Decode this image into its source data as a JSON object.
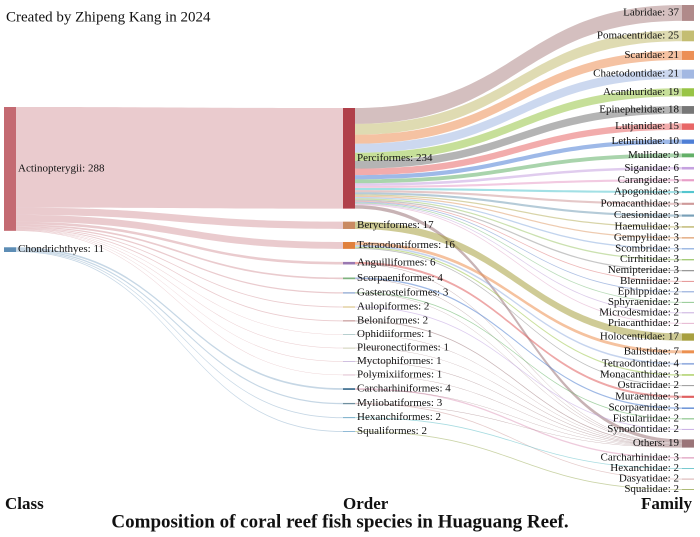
{
  "chart_data": {
    "type": "sankey",
    "title": "Composition of coral reef fish species in Huaguang Reef.",
    "annotation": "Created by Zhipeng Kang in 2024",
    "columns": [
      "Class",
      "Order",
      "Family"
    ],
    "nodes": [
      {
        "label": "Actinopterygii: 288",
        "value": 288,
        "color": "#c46a72"
      },
      {
        "label": "Chondrichthyes: 11",
        "value": 11,
        "color": "#5d8db5"
      },
      {
        "label": "Perciformes: 234",
        "value": 234,
        "color": "#b0404a"
      },
      {
        "label": "Beryciformes: 17",
        "value": 17,
        "color": "#c98a62"
      },
      {
        "label": "Tetraodontiformes: 16",
        "value": 16,
        "color": "#e0803c"
      },
      {
        "label": "Anguilliformes: 6",
        "value": 6,
        "color": "#9a78b0"
      },
      {
        "label": "Scorpaeniformes: 4",
        "value": 4,
        "color": "#7fb27f"
      },
      {
        "label": "Gasterosteiformes: 3",
        "value": 3,
        "color": "#8fa7d0"
      },
      {
        "label": "Aulopiformes: 2",
        "value": 2,
        "color": "#d0b060"
      },
      {
        "label": "Beloniformes: 2",
        "value": 2,
        "color": "#b07070"
      },
      {
        "label": "Ophidiiformes: 1",
        "value": 1,
        "color": "#70a0a0"
      },
      {
        "label": "Pleuronectiformes: 1",
        "value": 1,
        "color": "#a0a070"
      },
      {
        "label": "Myctophiformes: 1",
        "value": 1,
        "color": "#a080c0"
      },
      {
        "label": "Polymixiiformes: 1",
        "value": 1,
        "color": "#c080a0"
      },
      {
        "label": "Carcharhiniformes: 4",
        "value": 4,
        "color": "#3f6f8f"
      },
      {
        "label": "Myliobatiformes: 3",
        "value": 3,
        "color": "#6f8f9f"
      },
      {
        "label": "Hexanchiformes: 2",
        "value": 2,
        "color": "#5f9fbf"
      },
      {
        "label": "Squaliformes: 2",
        "value": 2,
        "color": "#7fafcf"
      },
      {
        "label": "Labridae: 37",
        "value": 37,
        "color": "#b08a8a"
      },
      {
        "label": "Pomacentridae: 25",
        "value": 25,
        "color": "#c4bd72"
      },
      {
        "label": "Scaridae: 21",
        "value": 21,
        "color": "#ec8f55"
      },
      {
        "label": "Chaetodontidae: 21",
        "value": 21,
        "color": "#a3b8e2"
      },
      {
        "label": "Acanthuridae: 19",
        "value": 19,
        "color": "#98c446"
      },
      {
        "label": "Epinephelidae: 18",
        "value": 18,
        "color": "#777777"
      },
      {
        "label": "Lutjanidae: 15",
        "value": 15,
        "color": "#e86767"
      },
      {
        "label": "Lethrinidae: 10",
        "value": 10,
        "color": "#4e7fd6"
      },
      {
        "label": "Mullidae: 9",
        "value": 9,
        "color": "#63b068"
      },
      {
        "label": "Siganidae: 6",
        "value": 6,
        "color": "#c6a2e0"
      },
      {
        "label": "Carangidae: 5",
        "value": 5,
        "color": "#e89fc8"
      },
      {
        "label": "Apogonidae: 5",
        "value": 5,
        "color": "#55c6cf"
      },
      {
        "label": "Pomacanthidae: 5",
        "value": 5,
        "color": "#cf9a9a"
      },
      {
        "label": "Caesionidae: 5",
        "value": 5,
        "color": "#78a0b8"
      },
      {
        "label": "Haemulidae: 3",
        "value": 3,
        "color": "#b8b060"
      },
      {
        "label": "Gempylidae: 3",
        "value": 3,
        "color": "#e0a070"
      },
      {
        "label": "Scombridae: 3",
        "value": 3,
        "color": "#90b0e0"
      },
      {
        "label": "Cirrhitidae: 3",
        "value": 3,
        "color": "#a0c870"
      },
      {
        "label": "Nemipteridae: 3",
        "value": 3,
        "color": "#999999"
      },
      {
        "label": "Blenniidae: 2",
        "value": 2,
        "color": "#e08080"
      },
      {
        "label": "Ephippidae: 2",
        "value": 2,
        "color": "#7090d0"
      },
      {
        "label": "Sphyraenidae: 2",
        "value": 2,
        "color": "#80c080"
      },
      {
        "label": "Microdesmidae: 2",
        "value": 2,
        "color": "#c0a0d8"
      },
      {
        "label": "Priacanthidae: 2",
        "value": 2,
        "color": "#e0a8c8"
      },
      {
        "label": "Holocentridae: 17",
        "value": 17,
        "color": "#a8a040"
      },
      {
        "label": "Balistidae: 7",
        "value": 7,
        "color": "#ec9050"
      },
      {
        "label": "Tetraodontidae: 4",
        "value": 4,
        "color": "#98b0e0"
      },
      {
        "label": "Monacanthidae: 3",
        "value": 3,
        "color": "#a0c850"
      },
      {
        "label": "Ostraciidae: 2",
        "value": 2,
        "color": "#888888"
      },
      {
        "label": "Muraenidae: 5",
        "value": 5,
        "color": "#e06060"
      },
      {
        "label": "Scorpaenidae: 3",
        "value": 3,
        "color": "#5080d0"
      },
      {
        "label": "Fistulariidae: 2",
        "value": 2,
        "color": "#60b060"
      },
      {
        "label": "Synodontidae: 2",
        "value": 2,
        "color": "#c0a0e0"
      },
      {
        "label": "Others: 19",
        "value": 19,
        "color": "#9a7478"
      },
      {
        "label": "Carcharhinidae: 3",
        "value": 3,
        "color": "#e0a0c0"
      },
      {
        "label": "Hexanchidae: 2",
        "value": 2,
        "color": "#60c0c8"
      },
      {
        "label": "Dasyatidae: 2",
        "value": 2,
        "color": "#d0a0a0"
      },
      {
        "label": "Squalidae: 2",
        "value": 2,
        "color": "#a0b060"
      }
    ],
    "links": [
      {
        "source": 0,
        "target": 2,
        "value": 234
      },
      {
        "source": 0,
        "target": 3,
        "value": 17
      },
      {
        "source": 0,
        "target": 4,
        "value": 16
      },
      {
        "source": 0,
        "target": 5,
        "value": 6
      },
      {
        "source": 0,
        "target": 6,
        "value": 4
      },
      {
        "source": 0,
        "target": 7,
        "value": 3
      },
      {
        "source": 0,
        "target": 8,
        "value": 2
      },
      {
        "source": 0,
        "target": 9,
        "value": 2
      },
      {
        "source": 0,
        "target": 10,
        "value": 1
      },
      {
        "source": 0,
        "target": 11,
        "value": 1
      },
      {
        "source": 0,
        "target": 12,
        "value": 1
      },
      {
        "source": 0,
        "target": 13,
        "value": 1
      },
      {
        "source": 1,
        "target": 14,
        "value": 4
      },
      {
        "source": 1,
        "target": 15,
        "value": 3
      },
      {
        "source": 1,
        "target": 16,
        "value": 2
      },
      {
        "source": 1,
        "target": 17,
        "value": 2
      },
      {
        "source": 2,
        "target": 18,
        "value": 37
      },
      {
        "source": 2,
        "target": 19,
        "value": 25
      },
      {
        "source": 2,
        "target": 20,
        "value": 21
      },
      {
        "source": 2,
        "target": 21,
        "value": 21
      },
      {
        "source": 2,
        "target": 22,
        "value": 19
      },
      {
        "source": 2,
        "target": 23,
        "value": 18
      },
      {
        "source": 2,
        "target": 24,
        "value": 15
      },
      {
        "source": 2,
        "target": 25,
        "value": 10
      },
      {
        "source": 2,
        "target": 26,
        "value": 9
      },
      {
        "source": 2,
        "target": 27,
        "value": 6
      },
      {
        "source": 2,
        "target": 28,
        "value": 5
      },
      {
        "source": 2,
        "target": 29,
        "value": 5
      },
      {
        "source": 2,
        "target": 30,
        "value": 5
      },
      {
        "source": 2,
        "target": 31,
        "value": 5
      },
      {
        "source": 2,
        "target": 32,
        "value": 3
      },
      {
        "source": 2,
        "target": 33,
        "value": 3
      },
      {
        "source": 2,
        "target": 34,
        "value": 3
      },
      {
        "source": 2,
        "target": 35,
        "value": 3
      },
      {
        "source": 2,
        "target": 36,
        "value": 3
      },
      {
        "source": 2,
        "target": 37,
        "value": 2
      },
      {
        "source": 2,
        "target": 38,
        "value": 2
      },
      {
        "source": 2,
        "target": 39,
        "value": 2
      },
      {
        "source": 2,
        "target": 40,
        "value": 2
      },
      {
        "source": 2,
        "target": 41,
        "value": 2
      },
      {
        "source": 2,
        "target": 51,
        "value": 8
      },
      {
        "source": 3,
        "target": 42,
        "value": 17
      },
      {
        "source": 4,
        "target": 43,
        "value": 7
      },
      {
        "source": 4,
        "target": 44,
        "value": 4
      },
      {
        "source": 4,
        "target": 45,
        "value": 3
      },
      {
        "source": 4,
        "target": 46,
        "value": 2
      },
      {
        "source": 5,
        "target": 47,
        "value": 5
      },
      {
        "source": 5,
        "target": 51,
        "value": 1
      },
      {
        "source": 6,
        "target": 48,
        "value": 3
      },
      {
        "source": 6,
        "target": 51,
        "value": 1
      },
      {
        "source": 7,
        "target": 49,
        "value": 2
      },
      {
        "source": 7,
        "target": 51,
        "value": 1
      },
      {
        "source": 8,
        "target": 50,
        "value": 2
      },
      {
        "source": 9,
        "target": 51,
        "value": 2
      },
      {
        "source": 10,
        "target": 51,
        "value": 1
      },
      {
        "source": 11,
        "target": 51,
        "value": 1
      },
      {
        "source": 12,
        "target": 51,
        "value": 1
      },
      {
        "source": 13,
        "target": 51,
        "value": 1
      },
      {
        "source": 14,
        "target": 52,
        "value": 3
      },
      {
        "source": 14,
        "target": 51,
        "value": 1
      },
      {
        "source": 15,
        "target": 54,
        "value": 2
      },
      {
        "source": 15,
        "target": 51,
        "value": 1
      },
      {
        "source": 16,
        "target": 53,
        "value": 2
      },
      {
        "source": 17,
        "target": 55,
        "value": 2
      }
    ]
  }
}
